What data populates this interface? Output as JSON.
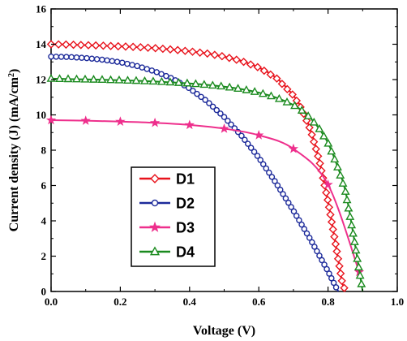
{
  "chart_data": {
    "type": "line",
    "xlabel": "Voltage (V)",
    "ylabel_main": "Current density (J) (mA/cm",
    "ylabel_sup": "2",
    "ylabel_close": ")",
    "xlim": [
      0.0,
      1.0
    ],
    "ylim": [
      0,
      16
    ],
    "xticks": [
      "0.0",
      "0.2",
      "0.4",
      "0.6",
      "0.8",
      "1.0"
    ],
    "yticks": [
      "0",
      "2",
      "4",
      "6",
      "8",
      "10",
      "12",
      "14",
      "16"
    ],
    "legend_position": "lower-left",
    "series": [
      {
        "name": "D1",
        "color": "#e8131c",
        "marker": "diamond",
        "x": [
          0.0,
          0.05,
          0.1,
          0.15,
          0.2,
          0.25,
          0.3,
          0.35,
          0.4,
          0.45,
          0.5,
          0.55,
          0.6,
          0.65,
          0.7,
          0.725,
          0.75,
          0.775,
          0.8,
          0.82,
          0.84,
          0.85
        ],
        "y": [
          14.0,
          13.98,
          13.95,
          13.92,
          13.88,
          13.84,
          13.78,
          13.7,
          13.6,
          13.48,
          13.3,
          13.05,
          12.68,
          12.1,
          11.1,
          10.3,
          9.1,
          7.4,
          5.1,
          2.9,
          0.6,
          0.0
        ]
      },
      {
        "name": "D2",
        "color": "#1c2a9a",
        "marker": "circle",
        "x": [
          0.0,
          0.05,
          0.1,
          0.15,
          0.2,
          0.25,
          0.3,
          0.35,
          0.4,
          0.45,
          0.5,
          0.55,
          0.6,
          0.65,
          0.7,
          0.75,
          0.8,
          0.82,
          0.83
        ],
        "y": [
          13.3,
          13.28,
          13.22,
          13.12,
          12.98,
          12.76,
          12.46,
          12.06,
          11.5,
          10.78,
          9.88,
          8.82,
          7.58,
          6.14,
          4.58,
          2.92,
          1.14,
          0.35,
          0.0
        ]
      },
      {
        "name": "D3",
        "color": "#ee2f8c",
        "marker": "star",
        "x": [
          0.0,
          0.1,
          0.2,
          0.3,
          0.4,
          0.5,
          0.6,
          0.7,
          0.8,
          0.89
        ],
        "y": [
          9.7,
          9.67,
          9.62,
          9.55,
          9.43,
          9.22,
          8.85,
          8.08,
          6.05,
          1.1
        ]
      },
      {
        "name": "D4",
        "color": "#1a8a1e",
        "marker": "triangle",
        "x": [
          0.0,
          0.05,
          0.1,
          0.15,
          0.2,
          0.25,
          0.3,
          0.35,
          0.4,
          0.45,
          0.5,
          0.55,
          0.6,
          0.65,
          0.7,
          0.725,
          0.75,
          0.775,
          0.8,
          0.825,
          0.85,
          0.875,
          0.9
        ],
        "y": [
          12.05,
          12.03,
          12.01,
          11.99,
          11.96,
          11.93,
          11.89,
          11.84,
          11.78,
          11.7,
          11.6,
          11.46,
          11.26,
          10.98,
          10.56,
          10.24,
          9.8,
          9.2,
          8.4,
          7.2,
          5.7,
          3.0,
          0.0
        ]
      }
    ]
  }
}
